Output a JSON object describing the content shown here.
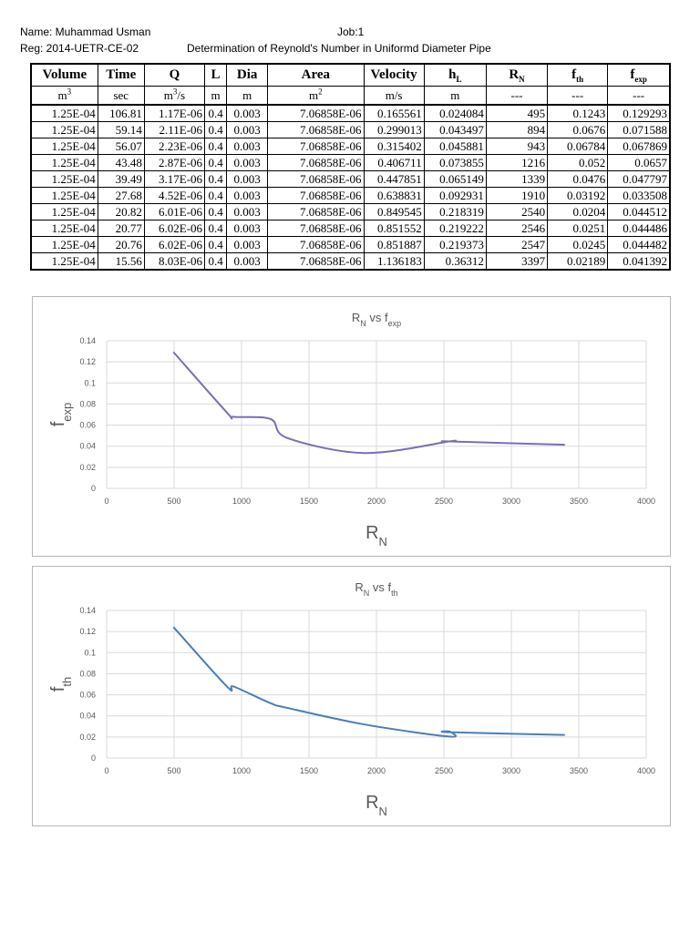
{
  "header": {
    "name": "Name: Muhammad Usman",
    "job": "Job:1",
    "reg": "Reg: 2014-UETR-CE-02",
    "title": "Determination of Reynold's Number in Uniformd Diameter Pipe"
  },
  "table": {
    "columns": [
      {
        "label": "Volume",
        "sub": "",
        "unit": "m",
        "unit_sup": "3"
      },
      {
        "label": "Time",
        "sub": "",
        "unit": "sec",
        "unit_sup": ""
      },
      {
        "label": "Q",
        "sub": "",
        "unit": "m",
        "unit_sup": "3",
        "unit_suffix": "/s"
      },
      {
        "label": "L",
        "sub": "",
        "unit": "m",
        "unit_sup": ""
      },
      {
        "label": "Dia",
        "sub": "",
        "unit": "m",
        "unit_sup": ""
      },
      {
        "label": "Area",
        "sub": "",
        "unit": "m",
        "unit_sup": "2"
      },
      {
        "label": "Velocity",
        "sub": "",
        "unit": "m/s",
        "unit_sup": ""
      },
      {
        "label": "h",
        "sub": "L",
        "unit": "m",
        "unit_sup": ""
      },
      {
        "label": "R",
        "sub": "N",
        "unit": "---",
        "unit_sup": ""
      },
      {
        "label": "f",
        "sub": "th",
        "unit": "---",
        "unit_sup": ""
      },
      {
        "label": "f",
        "sub": "exp",
        "unit": "---",
        "unit_sup": ""
      }
    ],
    "rows": [
      [
        "1.25E-04",
        "106.81",
        "1.17E-06",
        "0.4",
        "0.003",
        "7.06858E-06",
        "0.165561",
        "0.024084",
        "495",
        "0.1243",
        "0.129293"
      ],
      [
        "1.25E-04",
        "59.14",
        "2.11E-06",
        "0.4",
        "0.003",
        "7.06858E-06",
        "0.299013",
        "0.043497",
        "894",
        "0.0676",
        "0.071588"
      ],
      [
        "1.25E-04",
        "56.07",
        "2.23E-06",
        "0.4",
        "0.003",
        "7.06858E-06",
        "0.315402",
        "0.045881",
        "943",
        "0.06784",
        "0.067869"
      ],
      [
        "1.25E-04",
        "43.48",
        "2.87E-06",
        "0.4",
        "0.003",
        "7.06858E-06",
        "0.406711",
        "0.073855",
        "1216",
        "0.052",
        "0.0657"
      ],
      [
        "1.25E-04",
        "39.49",
        "3.17E-06",
        "0.4",
        "0.003",
        "7.06858E-06",
        "0.447851",
        "0.065149",
        "1339",
        "0.0476",
        "0.047797"
      ],
      [
        "1.25E-04",
        "27.68",
        "4.52E-06",
        "0.4",
        "0.003",
        "7.06858E-06",
        "0.638831",
        "0.092931",
        "1910",
        "0.03192",
        "0.033508"
      ],
      [
        "1.25E-04",
        "20.82",
        "6.01E-06",
        "0.4",
        "0.003",
        "7.06858E-06",
        "0.849545",
        "0.218319",
        "2540",
        "0.0204",
        "0.044512"
      ],
      [
        "1.25E-04",
        "20.77",
        "6.02E-06",
        "0.4",
        "0.003",
        "7.06858E-06",
        "0.851552",
        "0.219222",
        "2546",
        "0.0251",
        "0.044486"
      ],
      [
        "1.25E-04",
        "20.76",
        "6.02E-06",
        "0.4",
        "0.003",
        "7.06858E-06",
        "0.851887",
        "0.219373",
        "2547",
        "0.0245",
        "0.044482"
      ],
      [
        "1.25E-04",
        "15.56",
        "8.03E-06",
        "0.4",
        "0.003",
        "7.06858E-06",
        "1.136183",
        "0.36312",
        "3397",
        "0.02189",
        "0.041392"
      ]
    ]
  },
  "chart_data": [
    {
      "type": "line",
      "title": {
        "main": "R",
        "sub": "N",
        "mid": " vs f",
        "sub2": "exp"
      },
      "xlabel": {
        "main": "R",
        "sub": "N"
      },
      "ylabel": {
        "main": "f",
        "sub": "exp"
      },
      "xlim": [
        0,
        4000
      ],
      "ylim": [
        0,
        0.14
      ],
      "x_ticks": [
        0,
        500,
        1000,
        1500,
        2000,
        2500,
        3000,
        3500,
        4000
      ],
      "y_ticks": [
        0,
        0.02,
        0.04,
        0.06,
        0.08,
        0.1,
        0.12,
        0.14
      ],
      "x_tick_labels": [
        "0",
        "500",
        "1000",
        "1500",
        "2000",
        "2500",
        "3000",
        "3500",
        "4000"
      ],
      "y_tick_labels": [
        "0",
        "0.02",
        "0.04",
        "0.06",
        "0.08",
        "0.1",
        "0.12",
        "0.14"
      ],
      "grid": true,
      "legend": "none",
      "smooth": true,
      "line_color": "#7b6fb3",
      "series": [
        {
          "x": [
            495,
            894,
            943,
            1216,
            1339,
            1910,
            2540,
            2546,
            2547,
            3397
          ],
          "values": [
            0.129293,
            0.071588,
            0.067869,
            0.0657,
            0.047797,
            0.033508,
            0.044512,
            0.044486,
            0.044482,
            0.041392
          ]
        }
      ]
    },
    {
      "type": "line",
      "title": {
        "main": "R",
        "sub": "N",
        "mid": " vs f",
        "sub2": "th"
      },
      "xlabel": {
        "main": "R",
        "sub": "N"
      },
      "ylabel": {
        "main": "f",
        "sub": "th"
      },
      "xlim": [
        0,
        4000
      ],
      "ylim": [
        0,
        0.14
      ],
      "x_ticks": [
        0,
        500,
        1000,
        1500,
        2000,
        2500,
        3000,
        3500,
        4000
      ],
      "y_ticks": [
        0,
        0.02,
        0.04,
        0.06,
        0.08,
        0.1,
        0.12,
        0.14
      ],
      "x_tick_labels": [
        "0",
        "500",
        "1000",
        "1500",
        "2000",
        "2500",
        "3000",
        "3500",
        "4000"
      ],
      "y_tick_labels": [
        "0",
        "0.02",
        "0.04",
        "0.06",
        "0.08",
        "0.1",
        "0.12",
        "0.14"
      ],
      "grid": true,
      "legend": "none",
      "smooth": true,
      "line_color": "#4a7ebb",
      "series": [
        {
          "x": [
            495,
            894,
            943,
            1216,
            1339,
            1910,
            2540,
            2546,
            2547,
            3397
          ],
          "values": [
            0.1243,
            0.0676,
            0.06784,
            0.052,
            0.0476,
            0.03192,
            0.0204,
            0.0251,
            0.0245,
            0.02189
          ]
        }
      ]
    }
  ]
}
